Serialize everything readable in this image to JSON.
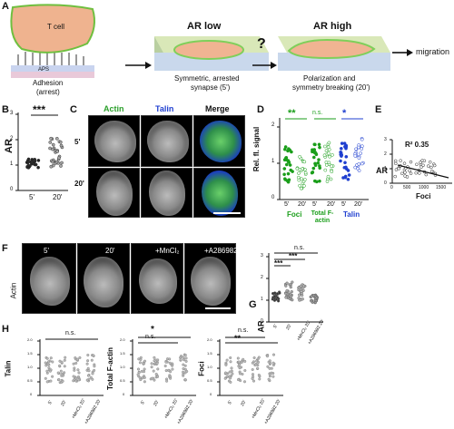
{
  "panels": {
    "a": "A",
    "b": "B",
    "c": "C",
    "d": "D",
    "e": "E",
    "f": "F",
    "g": "G",
    "h": "H"
  },
  "panelA": {
    "tcell": "T cell",
    "aps": "APS",
    "adhesion": "Adhesion",
    "arrest": "(arrest)",
    "ar_low": "AR low",
    "symmetric": "Symmetric, arrested",
    "synapse": "synapse (5')",
    "question": "?",
    "ar_high": "AR high",
    "polarization": "Polarization and",
    "symmetry_breaking": "symmetry breaking (20')",
    "migration": "migration"
  },
  "panelB": {
    "ylabel": "AR",
    "sig": "***",
    "x": [
      "5'",
      "20'"
    ],
    "yticks": [
      "0",
      "1",
      "2",
      "3"
    ]
  },
  "panelC": {
    "col_actin": "Actin",
    "col_talin": "Talin",
    "col_merge": "Merge",
    "row1": "5'",
    "row2": "20'"
  },
  "panelD": {
    "ylabel": "Rel. fl. signal",
    "sig1": "**",
    "sig2": "n.s.",
    "sig3": "*",
    "x": [
      "5'",
      "20'",
      "5'",
      "20'",
      "5'",
      "20'"
    ],
    "groups": [
      "Foci",
      "Total F-actin",
      "Talin"
    ],
    "yticks": [
      "0",
      "1",
      "2"
    ],
    "colors": {
      "foci": "#1a9e1a",
      "factin": "#1a9e1a",
      "talin": "#1f3fd0"
    }
  },
  "panelE": {
    "r2": "R² 0.35",
    "ylabel": "AR",
    "xlabel": "Foci",
    "xticks": [
      "0",
      "500",
      "1000",
      "1500"
    ],
    "yticks": [
      "0",
      "1",
      "2",
      "3"
    ]
  },
  "panelF": {
    "row_label": "Actin",
    "cols": [
      "5'",
      "20'",
      "+MnCl₂",
      "+A286982"
    ]
  },
  "panelG": {
    "ylabel": "AR",
    "sig_top": "n.s.",
    "sig_mid": "***",
    "sig_low": "***",
    "x": [
      "5'",
      "20'",
      "+MnCl₂ 20'",
      "+A286982 20'"
    ],
    "yticks": [
      "0",
      "1",
      "2",
      "3"
    ]
  },
  "panelH": {
    "plots": [
      {
        "ylabel": "Talin",
        "sig": [
          "n.s."
        ],
        "yticks": [
          "0",
          "0.5",
          "1.0",
          "1.5",
          "2.0"
        ]
      },
      {
        "ylabel": "Total F-actin",
        "sig": [
          "*",
          "n.s."
        ],
        "yticks": [
          "0",
          "0.5",
          "1.0",
          "1.5",
          "2.0"
        ]
      },
      {
        "ylabel": "Foci",
        "sig": [
          "n.s.",
          "**"
        ],
        "yticks": [
          "0",
          "0.5",
          "1.0",
          "1.5",
          "2.0"
        ]
      }
    ],
    "x": [
      "5'",
      "20'",
      "+MnCl₂ 20'",
      "+A286982 20'"
    ]
  }
}
